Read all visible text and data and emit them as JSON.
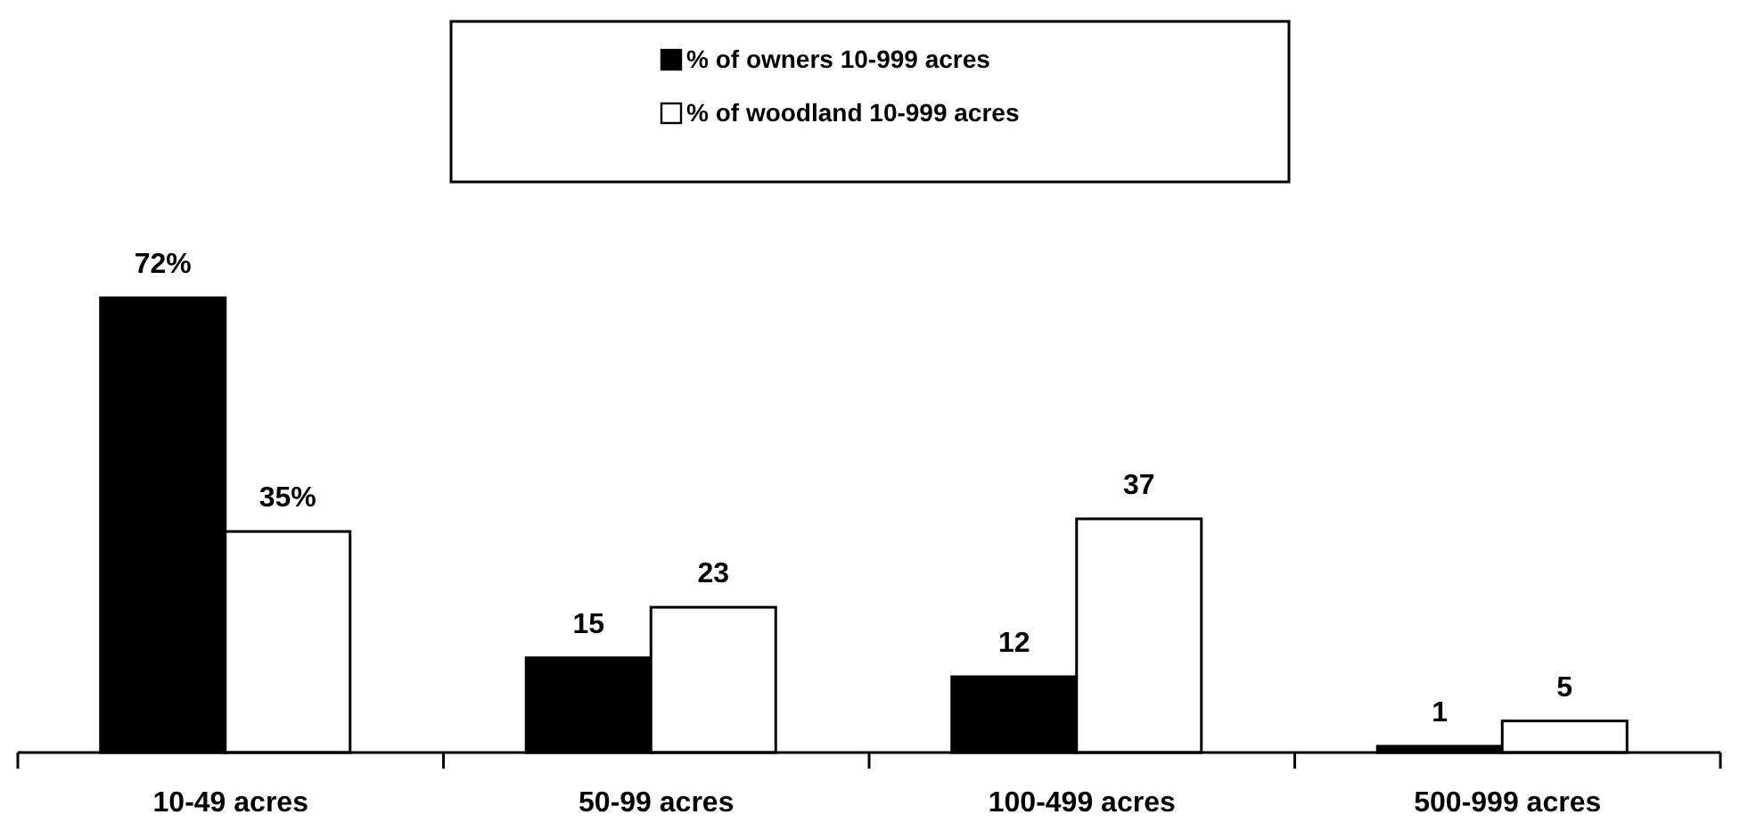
{
  "chart_data": {
    "type": "bar",
    "categories": [
      "10-49 acres",
      "50-99 acres",
      "100-499 acres",
      "500-999 acres"
    ],
    "series": [
      {
        "name": "% of owners 10-999 acres",
        "color": "#000000",
        "values": [
          72,
          15,
          12,
          1
        ],
        "value_labels": [
          "72%",
          "15",
          "12",
          "1"
        ]
      },
      {
        "name": "% of woodland 10-999 acres",
        "color": "#ffffff",
        "values": [
          35,
          23,
          37,
          5
        ],
        "value_labels": [
          "35%",
          "23",
          "37",
          "5"
        ]
      }
    ],
    "legend": "top"
  }
}
